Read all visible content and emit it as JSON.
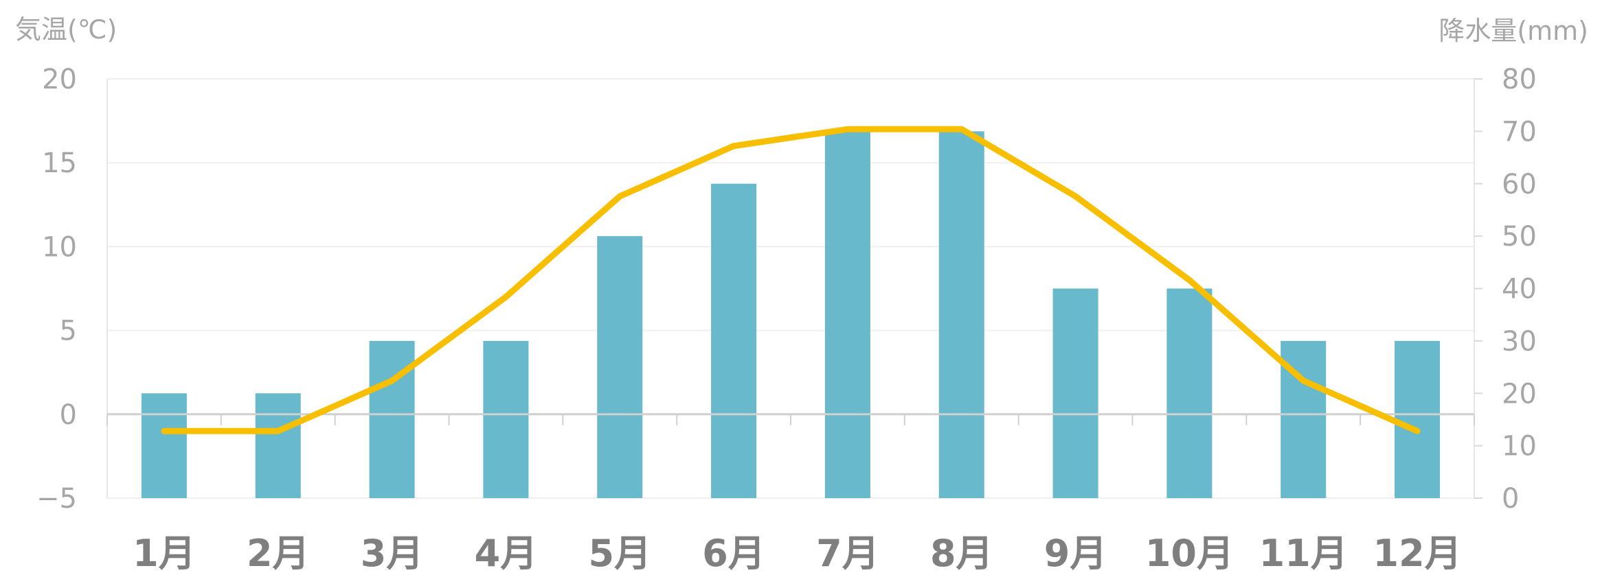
{
  "chart_data": {
    "type": "bar+line",
    "categories": [
      "1月",
      "2月",
      "3月",
      "4月",
      "5月",
      "6月",
      "7月",
      "8月",
      "9月",
      "10月",
      "11月",
      "12月"
    ],
    "series": [
      {
        "type": "bar",
        "axis": "right",
        "values": [
          20,
          20,
          30,
          30,
          50,
          60,
          70,
          70,
          40,
          40,
          30,
          30
        ],
        "color": "#67b9cb"
      },
      {
        "type": "line",
        "axis": "left",
        "values": [
          -1,
          -1,
          2,
          7,
          13,
          16,
          17,
          17,
          13,
          8,
          2,
          -1
        ],
        "color": "#f8bf00"
      }
    ],
    "y_left": {
      "title": "気温(℃)",
      "ylim": [
        -5,
        20
      ],
      "ticks": [
        20,
        15,
        10,
        5,
        0,
        -5
      ]
    },
    "y_right": {
      "title": "降水量(mm)",
      "ylim": [
        0,
        80
      ],
      "ticks": [
        80,
        70,
        60,
        50,
        40,
        30,
        20,
        10,
        0
      ]
    },
    "grid": true,
    "legend": "none"
  }
}
